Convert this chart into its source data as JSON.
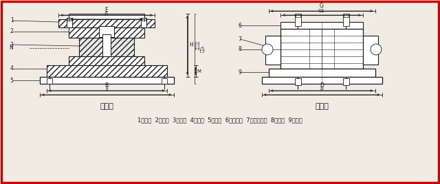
{
  "bg_color": "#f0ece4",
  "border_color": "#cc0000",
  "line_color": "#1a1a1a",
  "title1": "顺桥向",
  "title2": "横桥向",
  "caption": "1、上板  2、销钉  3、下板  4、垫板  5、锚栓  6、防震板  7、防震链条  8、螺母  9、铭牌",
  "side_text1": "锚栓间距",
  "side_text2": "长度L"
}
